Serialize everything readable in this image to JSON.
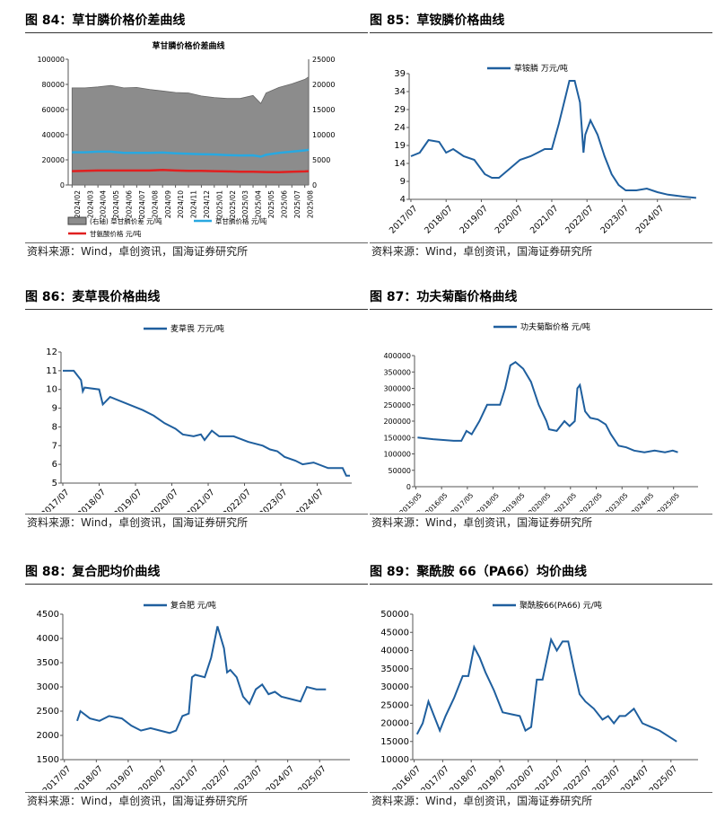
{
  "source": "资料来源：Wind，卓创资讯，国海证券研究所",
  "panels": [
    {
      "title": "图 84：草甘膦价格价差曲线",
      "chart_data": {
        "type": "area",
        "title": "草甘膦价格价差曲线",
        "categories": [
          "2024/02",
          "2024/03",
          "2024/04",
          "2024/05",
          "2024/06",
          "2024/07",
          "2024/08",
          "2024/09",
          "2024/10",
          "2024/11",
          "2024/12",
          "2025/01",
          "2025/02",
          "2025/03",
          "2025/04",
          "2025/05",
          "2025/06",
          "2025/07",
          "2025/08"
        ],
        "ylim": [
          0,
          100000
        ],
        "y2lim": [
          0,
          25000
        ],
        "yticks": [
          0,
          20000,
          40000,
          60000,
          80000,
          100000
        ],
        "y2ticks": [
          0,
          5000,
          10000,
          15000,
          20000,
          25000
        ],
        "series": [
          {
            "name": "(右轴) 草甘膦价差 元/吨",
            "axis": "right",
            "color": "#8c8c8c",
            "x": [
              0,
              1,
              2,
              3,
              4,
              5,
              6,
              7,
              8,
              9,
              10,
              11,
              12,
              13,
              14,
              14.6,
              15,
              16,
              17,
              18,
              18.3
            ],
            "values": [
              19300,
              19300,
              19500,
              19800,
              19300,
              19400,
              19000,
              18700,
              18400,
              18300,
              17700,
              17400,
              17200,
              17200,
              17800,
              16200,
              18300,
              19400,
              20100,
              21000,
              21500
            ]
          },
          {
            "name": "草甘膦价格 元/吨",
            "axis": "left",
            "color": "#29a8e0",
            "x": [
              0,
              1,
              2,
              3,
              4,
              5,
              6,
              7,
              8,
              9,
              10,
              11,
              12,
              13,
              14,
              14.6,
              15,
              16,
              17,
              18,
              18.3
            ],
            "values": [
              26000,
              26000,
              26500,
              26500,
              25500,
              25500,
              25500,
              25800,
              25200,
              24800,
              24500,
              24300,
              23800,
              23500,
              23600,
              22500,
              24000,
              25500,
              26500,
              27500,
              28000
            ]
          },
          {
            "name": "甘氨酸价格 元/吨",
            "axis": "left",
            "color": "#e02020",
            "x": [
              0,
              2,
              4,
              6,
              7,
              8,
              9,
              10,
              11,
              12,
              13,
              14,
              15,
              16,
              17,
              18,
              18.3
            ],
            "values": [
              11000,
              11500,
              11500,
              11500,
              12000,
              11500,
              11200,
              11200,
              11000,
              10800,
              10500,
              10500,
              10300,
              10200,
              10500,
              10800,
              11000
            ]
          }
        ]
      }
    },
    {
      "title": "图 85：草铵膦价格曲线",
      "chart_data": {
        "type": "line",
        "categories": [
          "2017/07",
          "2018/07",
          "2019/07",
          "2020/07",
          "2021/07",
          "2022/07",
          "2023/07",
          "2024/07"
        ],
        "ylim": [
          4,
          39
        ],
        "yticks": [
          4,
          9,
          14,
          19,
          24,
          29,
          34,
          39
        ],
        "series": [
          {
            "name": "草铵膦 万元/吨",
            "color": "#1f5f9e",
            "x": [
              2017.5,
              2017.75,
              2018.0,
              2018.3,
              2018.5,
              2018.7,
              2019.0,
              2019.3,
              2019.6,
              2019.8,
              2020.0,
              2020.3,
              2020.6,
              2020.9,
              2021.1,
              2021.3,
              2021.5,
              2021.7,
              2021.9,
              2022.0,
              2022.15,
              2022.3,
              2022.4,
              2022.45,
              2022.6,
              2022.8,
              2023.0,
              2023.2,
              2023.4,
              2023.6,
              2023.9,
              2024.2,
              2024.5,
              2024.8,
              2025.2,
              2025.6
            ],
            "values": [
              16,
              17,
              20.5,
              20,
              17,
              18,
              16,
              15,
              11,
              10,
              10,
              12.5,
              15,
              16,
              17,
              18,
              18,
              25,
              33,
              37,
              37,
              31,
              17,
              22,
              26,
              22,
              16,
              11,
              8,
              6.5,
              6.5,
              7,
              6,
              5.3,
              4.8,
              4.4
            ]
          }
        ]
      }
    },
    {
      "title": "图 86：麦草畏价格曲线",
      "chart_data": {
        "type": "line",
        "categories": [
          "2017/07",
          "2018/07",
          "2019/07",
          "2020/07",
          "2021/07",
          "2022/07",
          "2023/07",
          "2024/07"
        ],
        "ylim": [
          5,
          12
        ],
        "yticks": [
          5,
          6,
          7,
          8,
          9,
          10,
          11,
          12
        ],
        "series": [
          {
            "name": "麦草畏 万元/吨",
            "color": "#1f5f9e",
            "x": [
              2017.5,
              2017.8,
              2018.0,
              2018.05,
              2018.1,
              2018.5,
              2018.6,
              2018.8,
              2019.7,
              2020.0,
              2020.3,
              2020.6,
              2020.8,
              2021.1,
              2021.3,
              2021.4,
              2021.6,
              2021.8,
              2022.2,
              2022.6,
              2023.0,
              2023.2,
              2023.4,
              2023.6,
              2023.9,
              2024.1,
              2024.4,
              2024.8,
              2025.2,
              2025.3,
              2025.4
            ],
            "values": [
              11,
              11,
              10.5,
              9.9,
              10.1,
              10,
              9.2,
              9.6,
              8.9,
              8.6,
              8.2,
              7.9,
              7.6,
              7.5,
              7.6,
              7.3,
              7.8,
              7.5,
              7.5,
              7.2,
              7.0,
              6.8,
              6.7,
              6.4,
              6.2,
              6.0,
              6.1,
              5.8,
              5.8,
              5.4,
              5.4
            ]
          }
        ]
      }
    },
    {
      "title": "图 87：功夫菊酯价格曲线",
      "chart_data": {
        "type": "line",
        "categories": [
          "2015/05",
          "2016/05",
          "2017/05",
          "2018/05",
          "2019/05",
          "2020/05",
          "2021/05",
          "2022/05",
          "2023/05",
          "2024/05",
          "2025/05"
        ],
        "ylim": [
          0,
          400000
        ],
        "yticks": [
          0,
          50000,
          100000,
          150000,
          200000,
          250000,
          300000,
          350000,
          400000
        ],
        "series": [
          {
            "name": "功夫菊酯价格 元/吨",
            "color": "#1f5f9e",
            "x": [
              2015.4,
              2016.0,
              2016.8,
              2017.1,
              2017.3,
              2017.5,
              2017.8,
              2018.1,
              2018.4,
              2018.6,
              2018.8,
              2019.0,
              2019.2,
              2019.5,
              2019.8,
              2020.1,
              2020.4,
              2020.5,
              2020.8,
              2021.1,
              2021.3,
              2021.5,
              2021.6,
              2021.7,
              2021.9,
              2022.1,
              2022.4,
              2022.7,
              2022.9,
              2023.2,
              2023.5,
              2023.8,
              2024.2,
              2024.6,
              2025.0,
              2025.3,
              2025.5
            ],
            "values": [
              150000,
              145000,
              140000,
              140000,
              170000,
              160000,
              200000,
              250000,
              250000,
              250000,
              300000,
              370000,
              380000,
              360000,
              320000,
              250000,
              200000,
              175000,
              170000,
              200000,
              185000,
              200000,
              300000,
              310000,
              230000,
              210000,
              205000,
              190000,
              160000,
              125000,
              120000,
              110000,
              105000,
              110000,
              105000,
              110000,
              105000
            ]
          }
        ]
      }
    },
    {
      "title": "图 88：复合肥均价曲线",
      "chart_data": {
        "type": "line",
        "categories": [
          "2017/07",
          "2018/07",
          "2019/07",
          "2020/07",
          "2021/07",
          "2022/07",
          "2023/07",
          "2024/07",
          "2025/07"
        ],
        "ylim": [
          1500,
          4500
        ],
        "yticks": [
          1500,
          2000,
          2500,
          3000,
          3500,
          4000,
          4500
        ],
        "series": [
          {
            "name": "复合肥 元/吨",
            "color": "#1f5f9e",
            "x": [
              2017.9,
              2018.0,
              2018.3,
              2018.6,
              2018.9,
              2019.3,
              2019.6,
              2019.9,
              2020.2,
              2020.5,
              2020.8,
              2021.0,
              2021.2,
              2021.4,
              2021.5,
              2021.6,
              2021.9,
              2022.1,
              2022.3,
              2022.5,
              2022.6,
              2022.7,
              2022.9,
              2023.1,
              2023.3,
              2023.5,
              2023.7,
              2023.9,
              2024.1,
              2024.3,
              2024.6,
              2024.9,
              2025.1,
              2025.4,
              2025.7
            ],
            "values": [
              2300,
              2500,
              2350,
              2300,
              2400,
              2350,
              2200,
              2100,
              2150,
              2100,
              2050,
              2100,
              2400,
              2450,
              3200,
              3250,
              3200,
              3600,
              4250,
              3800,
              3300,
              3350,
              3200,
              2800,
              2650,
              2950,
              3050,
              2850,
              2900,
              2800,
              2750,
              2700,
              3000,
              2950,
              2950
            ]
          }
        ]
      }
    },
    {
      "title": "图 89：聚酰胺 66（PA66）均价曲线",
      "chart_data": {
        "type": "line",
        "categories": [
          "2016/07",
          "2017/07",
          "2018/07",
          "2019/07",
          "2020/07",
          "2021/07",
          "2022/07",
          "2023/07",
          "2024/07",
          "2025/07"
        ],
        "ylim": [
          10000,
          50000
        ],
        "yticks": [
          10000,
          15000,
          20000,
          25000,
          30000,
          35000,
          40000,
          45000,
          50000
        ],
        "series": [
          {
            "name": "聚酰胺66(PA66) 元/吨",
            "color": "#1f5f9e",
            "x": [
              2016.6,
              2016.8,
              2017.0,
              2017.2,
              2017.4,
              2017.6,
              2017.9,
              2018.2,
              2018.4,
              2018.6,
              2018.8,
              2019.0,
              2019.3,
              2019.6,
              2019.9,
              2020.2,
              2020.4,
              2020.6,
              2020.8,
              2021.0,
              2021.3,
              2021.5,
              2021.7,
              2021.9,
              2022.1,
              2022.3,
              2022.5,
              2022.8,
              2023.1,
              2023.3,
              2023.5,
              2023.7,
              2023.9,
              2024.2,
              2024.5,
              2024.8,
              2025.1,
              2025.4,
              2025.7
            ],
            "values": [
              17000,
              20000,
              26000,
              22000,
              18000,
              22000,
              27000,
              33000,
              33000,
              41000,
              38000,
              34000,
              29000,
              23000,
              22500,
              22000,
              18000,
              19000,
              32000,
              32000,
              43000,
              40000,
              42500,
              42500,
              35000,
              28000,
              26000,
              24000,
              21000,
              22000,
              20000,
              22000,
              22000,
              24000,
              20000,
              19000,
              18000,
              16500,
              15000
            ]
          }
        ]
      }
    }
  ]
}
